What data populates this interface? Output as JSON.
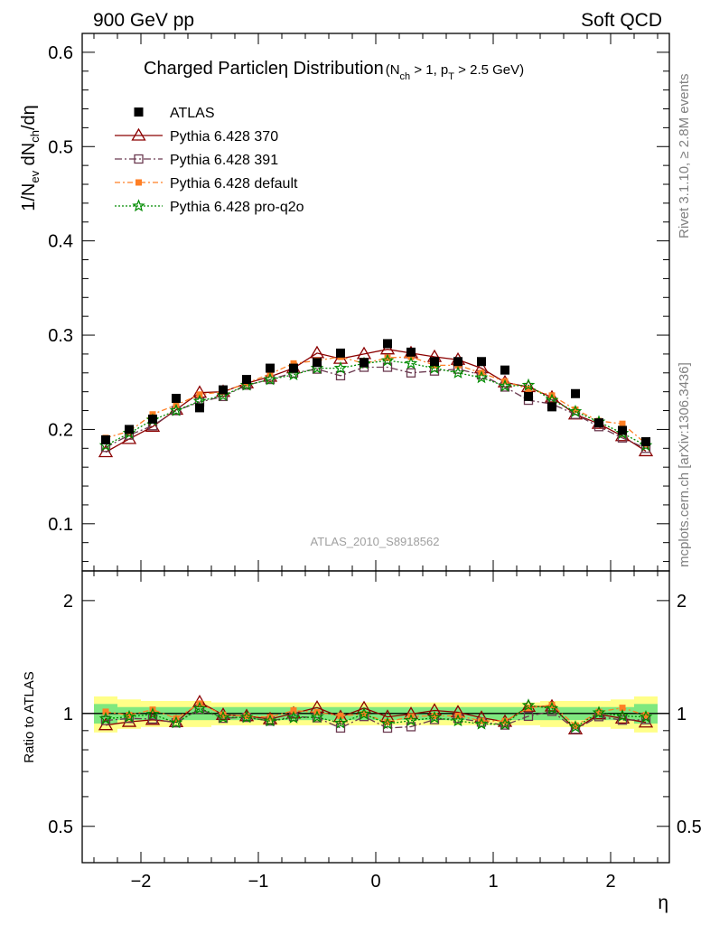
{
  "header": {
    "left": "900 GeV pp",
    "right": "Soft QCD"
  },
  "title": {
    "main": "Charged Particle",
    "eta": "η",
    "main2": " Distribution",
    "cuts": "(N",
    "cuts_sub": "ch",
    "cuts_mid": " > 1, p",
    "cuts_sub2": "T",
    "cuts_end": " > 2.5 GeV)"
  },
  "side_text": {
    "rivet": "Rivet 3.1.10, ≥ 2.8M events",
    "mcplots": "mcplots.cern.ch [arXiv:1306.3436]"
  },
  "analysis_id": "ATLAS_2010_S8918562",
  "axes": {
    "ylabel_main": "1/N",
    "ylabel_sub1": "ev",
    "ylabel_mid": " dN",
    "ylabel_sub2": "ch",
    "ylabel_end": "/dη",
    "ylabel_ratio": "Ratio to ATLAS",
    "xlabel": "η",
    "main_yticks": [
      "0.1",
      "0.2",
      "0.3",
      "0.4",
      "0.5",
      "0.6"
    ],
    "ratio_yticks": [
      "0.5",
      "1",
      "2"
    ],
    "xticks": [
      "−2",
      "−1",
      "0",
      "1",
      "2"
    ]
  },
  "legend": [
    {
      "label": "ATLAS"
    },
    {
      "label": "Pythia 6.428 370"
    },
    {
      "label": "Pythia 6.428 391"
    },
    {
      "label": "Pythia 6.428 default"
    },
    {
      "label": "Pythia 6.428 pro-q2o"
    }
  ],
  "colors": {
    "data": "#000000",
    "p370": "#8b0000",
    "p391": "#6b3a50",
    "pdefault": "#ff7f24",
    "pq2o": "#008b00",
    "band_inner": "#7fe87f",
    "band_outer": "#ffff88"
  },
  "chart_data": {
    "type": "scatter",
    "x": [
      -2.3,
      -2.1,
      -1.9,
      -1.7,
      -1.5,
      -1.3,
      -1.1,
      -0.9,
      -0.7,
      -0.5,
      -0.3,
      -0.1,
      0.1,
      0.3,
      0.5,
      0.7,
      0.9,
      1.1,
      1.3,
      1.5,
      1.7,
      1.9,
      2.1,
      2.3
    ],
    "xlim": [
      -2.5,
      2.5
    ],
    "ylim": [
      0.05,
      0.62
    ],
    "ratio_ylim": [
      0.4,
      2.4
    ],
    "ratio_scale": "log",
    "series": [
      {
        "name": "ATLAS",
        "values": [
          0.189,
          0.2,
          0.211,
          0.233,
          0.223,
          0.242,
          0.253,
          0.265,
          0.265,
          0.271,
          0.281,
          0.271,
          0.291,
          0.282,
          0.272,
          0.272,
          0.272,
          0.263,
          0.235,
          0.224,
          0.238,
          0.207,
          0.199,
          0.187
        ]
      },
      {
        "name": "Pythia 6.428 370",
        "values": [
          0.176,
          0.19,
          0.203,
          0.221,
          0.239,
          0.24,
          0.249,
          0.256,
          0.265,
          0.281,
          0.275,
          0.28,
          0.285,
          0.281,
          0.277,
          0.274,
          0.265,
          0.25,
          0.245,
          0.234,
          0.216,
          0.206,
          0.193,
          0.177
        ]
      },
      {
        "name": "Pythia 6.428 391",
        "values": [
          0.181,
          0.194,
          0.204,
          0.22,
          0.229,
          0.235,
          0.247,
          0.253,
          0.26,
          0.264,
          0.257,
          0.266,
          0.266,
          0.26,
          0.262,
          0.264,
          0.258,
          0.245,
          0.231,
          0.227,
          0.216,
          0.203,
          0.191,
          0.18
        ]
      },
      {
        "name": "Pythia 6.428 default",
        "values": [
          0.191,
          0.198,
          0.216,
          0.226,
          0.237,
          0.24,
          0.249,
          0.259,
          0.27,
          0.273,
          0.277,
          0.27,
          0.276,
          0.277,
          0.268,
          0.268,
          0.26,
          0.251,
          0.243,
          0.236,
          0.221,
          0.209,
          0.206,
          0.185
        ]
      },
      {
        "name": "Pythia 6.428 pro-q2o",
        "values": [
          0.183,
          0.196,
          0.21,
          0.22,
          0.23,
          0.236,
          0.247,
          0.253,
          0.258,
          0.265,
          0.265,
          0.27,
          0.273,
          0.27,
          0.265,
          0.26,
          0.255,
          0.246,
          0.247,
          0.231,
          0.219,
          0.208,
          0.196,
          0.183
        ]
      }
    ],
    "ratio_band_inner": [
      0.06,
      0.04,
      0.04,
      0.04,
      0.04,
      0.04,
      0.04,
      0.04,
      0.04,
      0.04,
      0.04,
      0.04,
      0.04,
      0.04,
      0.04,
      0.04,
      0.04,
      0.04,
      0.04,
      0.04,
      0.04,
      0.04,
      0.04,
      0.06
    ],
    "ratio_band_outer": [
      0.11,
      0.09,
      0.08,
      0.08,
      0.08,
      0.07,
      0.07,
      0.07,
      0.07,
      0.07,
      0.07,
      0.07,
      0.07,
      0.07,
      0.07,
      0.07,
      0.07,
      0.07,
      0.07,
      0.08,
      0.08,
      0.08,
      0.09,
      0.11
    ]
  }
}
